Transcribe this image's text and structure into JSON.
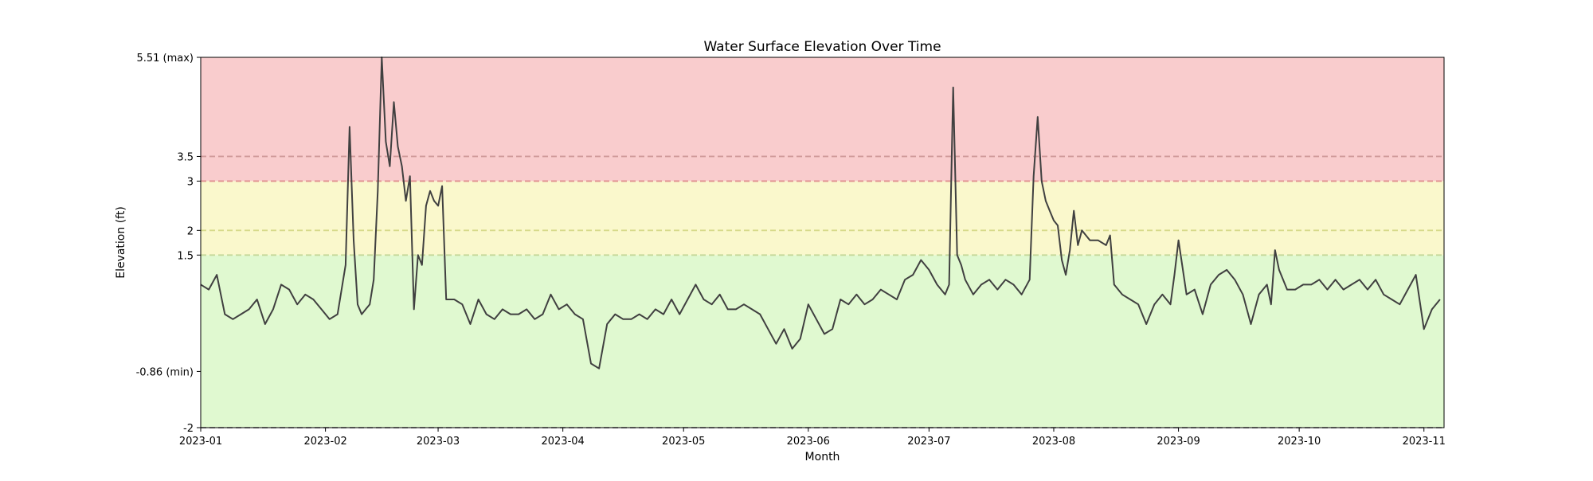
{
  "chart_data": {
    "type": "line",
    "title": "Water Surface Elevation Over Time",
    "xlabel": "Month",
    "ylabel": "Elevation (ft)",
    "xlim": [
      "2023-01-01",
      "2023-11-06"
    ],
    "ylim": [
      -2,
      5.51
    ],
    "x_ticks": [
      "2023-01",
      "2023-02",
      "2023-03",
      "2023-04",
      "2023-05",
      "2023-06",
      "2023-07",
      "2023-08",
      "2023-09",
      "2023-10",
      "2023-11"
    ],
    "y_ticks": [
      {
        "value": -2,
        "label": "-2"
      },
      {
        "value": -0.86,
        "label": "-0.86 (min)"
      },
      {
        "value": 1.5,
        "label": "1.5"
      },
      {
        "value": 2,
        "label": "2"
      },
      {
        "value": 3,
        "label": "3"
      },
      {
        "value": 3.5,
        "label": "3.5"
      },
      {
        "value": 5.51,
        "label": "5.51 (max)"
      }
    ],
    "bands": [
      {
        "from": -2,
        "to": 1.5,
        "color": "#e0f9d0"
      },
      {
        "from": 1.5,
        "to": 3,
        "color": "#faf8cc"
      },
      {
        "from": 3,
        "to": 5.51,
        "color": "#f9cccd"
      }
    ],
    "threshold_lines": [
      {
        "value": 1.5,
        "color": "#c5d89a"
      },
      {
        "value": 2,
        "color": "#d6d98a"
      },
      {
        "value": 3,
        "color": "#e09090"
      },
      {
        "value": 3.5,
        "color": "#d09a9a"
      },
      {
        "value": -2,
        "color": "#888888"
      }
    ],
    "line_color": "#404040",
    "grid": false,
    "series": [
      {
        "x": [
          "2023-01-01",
          "2023-01-03",
          "2023-01-05",
          "2023-01-07",
          "2023-01-09",
          "2023-01-11",
          "2023-01-13",
          "2023-01-15",
          "2023-01-17",
          "2023-01-19",
          "2023-01-21",
          "2023-01-23",
          "2023-01-25",
          "2023-01-27",
          "2023-01-29",
          "2023-01-31",
          "2023-02-02",
          "2023-02-04",
          "2023-02-06",
          "2023-02-07",
          "2023-02-08",
          "2023-02-09",
          "2023-02-10",
          "2023-02-11",
          "2023-02-12",
          "2023-02-13",
          "2023-02-14",
          "2023-02-15",
          "2023-02-16",
          "2023-02-17",
          "2023-02-18",
          "2023-02-19",
          "2023-02-20",
          "2023-02-21",
          "2023-02-22",
          "2023-02-23",
          "2023-02-24",
          "2023-02-25",
          "2023-02-26",
          "2023-02-27",
          "2023-02-28",
          "2023-03-01",
          "2023-03-02",
          "2023-03-03",
          "2023-03-05",
          "2023-03-07",
          "2023-03-09",
          "2023-03-11",
          "2023-03-13",
          "2023-03-15",
          "2023-03-17",
          "2023-03-19",
          "2023-03-21",
          "2023-03-23",
          "2023-03-25",
          "2023-03-27",
          "2023-03-29",
          "2023-03-31",
          "2023-04-02",
          "2023-04-04",
          "2023-04-06",
          "2023-04-08",
          "2023-04-10",
          "2023-04-12",
          "2023-04-14",
          "2023-04-16",
          "2023-04-18",
          "2023-04-20",
          "2023-04-22",
          "2023-04-24",
          "2023-04-26",
          "2023-04-28",
          "2023-04-30",
          "2023-05-02",
          "2023-05-04",
          "2023-05-06",
          "2023-05-08",
          "2023-05-10",
          "2023-05-12",
          "2023-05-14",
          "2023-05-16",
          "2023-05-18",
          "2023-05-20",
          "2023-05-22",
          "2023-05-24",
          "2023-05-26",
          "2023-05-28",
          "2023-05-30",
          "2023-06-01",
          "2023-06-03",
          "2023-06-05",
          "2023-06-07",
          "2023-06-09",
          "2023-06-11",
          "2023-06-13",
          "2023-06-15",
          "2023-06-17",
          "2023-06-19",
          "2023-06-21",
          "2023-06-23",
          "2023-06-25",
          "2023-06-27",
          "2023-06-29",
          "2023-07-01",
          "2023-07-03",
          "2023-07-05",
          "2023-07-06",
          "2023-07-07",
          "2023-07-08",
          "2023-07-09",
          "2023-07-10",
          "2023-07-12",
          "2023-07-14",
          "2023-07-16",
          "2023-07-18",
          "2023-07-20",
          "2023-07-22",
          "2023-07-24",
          "2023-07-26",
          "2023-07-27",
          "2023-07-28",
          "2023-07-29",
          "2023-07-30",
          "2023-07-31",
          "2023-08-01",
          "2023-08-02",
          "2023-08-03",
          "2023-08-04",
          "2023-08-05",
          "2023-08-06",
          "2023-08-07",
          "2023-08-08",
          "2023-08-10",
          "2023-08-12",
          "2023-08-14",
          "2023-08-15",
          "2023-08-16",
          "2023-08-18",
          "2023-08-20",
          "2023-08-22",
          "2023-08-24",
          "2023-08-26",
          "2023-08-28",
          "2023-08-30",
          "2023-08-31",
          "2023-09-01",
          "2023-09-03",
          "2023-09-05",
          "2023-09-07",
          "2023-09-09",
          "2023-09-11",
          "2023-09-13",
          "2023-09-15",
          "2023-09-17",
          "2023-09-19",
          "2023-09-21",
          "2023-09-23",
          "2023-09-24",
          "2023-09-25",
          "2023-09-26",
          "2023-09-28",
          "2023-09-30",
          "2023-10-02",
          "2023-10-04",
          "2023-10-06",
          "2023-10-08",
          "2023-10-10",
          "2023-10-12",
          "2023-10-14",
          "2023-10-16",
          "2023-10-18",
          "2023-10-20",
          "2023-10-22",
          "2023-10-24",
          "2023-10-26",
          "2023-10-28",
          "2023-10-30",
          "2023-11-01",
          "2023-11-03",
          "2023-11-05"
        ],
        "y": [
          0.9,
          0.8,
          1.1,
          0.3,
          0.2,
          0.3,
          0.4,
          0.6,
          0.1,
          0.4,
          0.9,
          0.8,
          0.5,
          0.7,
          0.6,
          0.4,
          0.2,
          0.3,
          1.3,
          4.1,
          1.8,
          0.5,
          0.3,
          0.4,
          0.5,
          1.0,
          2.8,
          5.51,
          3.8,
          3.3,
          4.6,
          3.7,
          3.3,
          2.6,
          3.1,
          0.4,
          1.5,
          1.3,
          2.5,
          2.8,
          2.6,
          2.5,
          2.9,
          0.6,
          0.6,
          0.5,
          0.1,
          0.6,
          0.3,
          0.2,
          0.4,
          0.3,
          0.3,
          0.4,
          0.2,
          0.3,
          0.7,
          0.4,
          0.5,
          0.3,
          0.2,
          -0.7,
          -0.8,
          0.1,
          0.3,
          0.2,
          0.2,
          0.3,
          0.2,
          0.4,
          0.3,
          0.6,
          0.3,
          0.6,
          0.9,
          0.6,
          0.5,
          0.7,
          0.4,
          0.4,
          0.5,
          0.4,
          0.3,
          0.0,
          -0.3,
          0.0,
          -0.4,
          -0.2,
          0.5,
          0.2,
          -0.1,
          0.0,
          0.6,
          0.5,
          0.7,
          0.5,
          0.6,
          0.8,
          0.7,
          0.6,
          1.0,
          1.1,
          1.4,
          1.2,
          0.9,
          0.7,
          0.9,
          4.9,
          1.5,
          1.3,
          1.0,
          0.7,
          0.9,
          1.0,
          0.8,
          1.0,
          0.9,
          0.7,
          1.0,
          3.1,
          4.3,
          3.0,
          2.6,
          2.4,
          2.2,
          2.1,
          1.4,
          1.1,
          1.6,
          2.4,
          1.7,
          2.0,
          1.8,
          1.8,
          1.7,
          1.9,
          0.9,
          0.7,
          0.6,
          0.5,
          0.1,
          0.5,
          0.7,
          0.5,
          1.1,
          1.8,
          0.7,
          0.8,
          0.3,
          0.9,
          1.1,
          1.2,
          1.0,
          0.7,
          0.1,
          0.7,
          0.9,
          0.5,
          1.6,
          1.2,
          0.8,
          0.8,
          0.9,
          0.9,
          1.0,
          0.8,
          1.0,
          0.8,
          0.9,
          1.0,
          0.8,
          1.0,
          0.7,
          0.6,
          0.5,
          0.8,
          1.1,
          0.0,
          0.4,
          0.6
        ]
      }
    ]
  }
}
